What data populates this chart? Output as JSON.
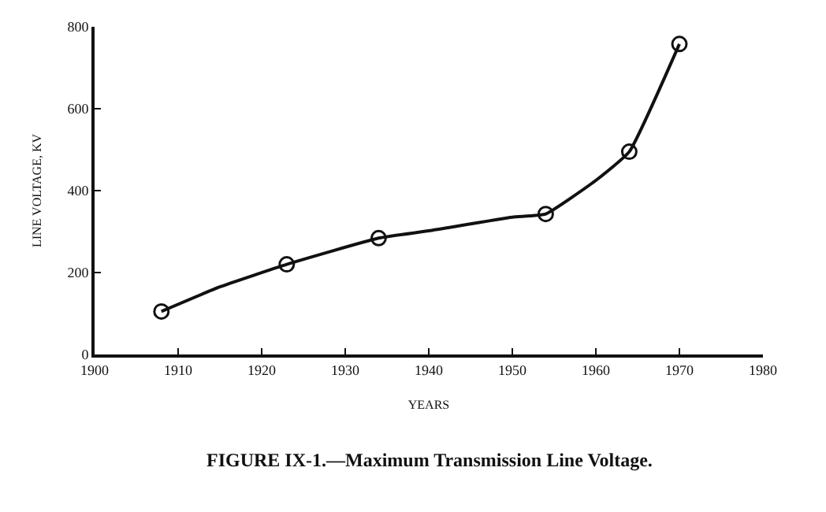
{
  "chart_data": {
    "type": "line",
    "xlabel": "YEARS",
    "ylabel": "LINE VOLTAGE, KV",
    "annotations": [
      "FIGURE IX-1.—Maximum Transmission Line Voltage."
    ],
    "series": [
      {
        "color": "#111111",
        "marker": "none",
        "x": [
          1908,
          1915,
          1923,
          1934,
          1940,
          1950,
          1954,
          1960,
          1964,
          1970
        ],
        "values": [
          105,
          165,
          220,
          284,
          302,
          335,
          343,
          425,
          495,
          758
        ]
      },
      {
        "type": "scatter",
        "color": "#111111",
        "marker": "circle",
        "x": [
          1908,
          1923,
          1934,
          1954,
          1964,
          1970
        ],
        "values": [
          105,
          220,
          284,
          343,
          495,
          758
        ]
      }
    ],
    "xlim": [
      1900,
      1980
    ],
    "xticks": [
      1900,
      1910,
      1920,
      1930,
      1940,
      1950,
      1960,
      1970,
      1980
    ],
    "ylim": [
      0,
      800
    ],
    "yticks": [
      0,
      200,
      400,
      600,
      800
    ]
  }
}
